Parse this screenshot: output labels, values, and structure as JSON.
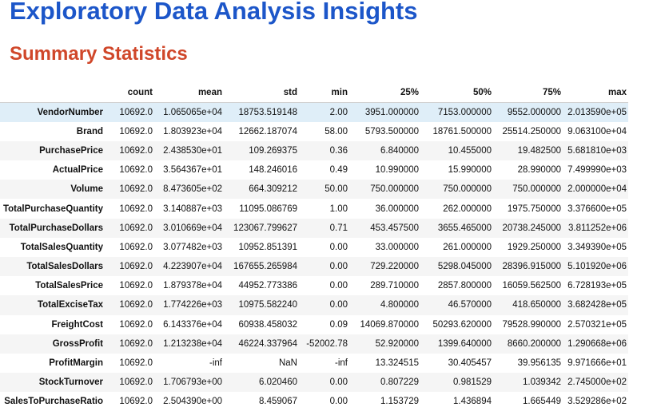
{
  "page": {
    "title": "Exploratory Data Analysis Insights",
    "section_title": "Summary Statistics"
  },
  "table": {
    "columns": [
      "count",
      "mean",
      "std",
      "min",
      "25%",
      "50%",
      "75%",
      "max"
    ],
    "rows": [
      {
        "label": "VendorNumber",
        "values": [
          "10692.0",
          "1.065065e+04",
          "18753.519148",
          "2.00",
          "3951.000000",
          "7153.000000",
          "9552.000000",
          "2.013590e+05"
        ]
      },
      {
        "label": "Brand",
        "values": [
          "10692.0",
          "1.803923e+04",
          "12662.187074",
          "58.00",
          "5793.500000",
          "18761.500000",
          "25514.250000",
          "9.063100e+04"
        ]
      },
      {
        "label": "PurchasePrice",
        "values": [
          "10692.0",
          "2.438530e+01",
          "109.269375",
          "0.36",
          "6.840000",
          "10.455000",
          "19.482500",
          "5.681810e+03"
        ]
      },
      {
        "label": "ActualPrice",
        "values": [
          "10692.0",
          "3.564367e+01",
          "148.246016",
          "0.49",
          "10.990000",
          "15.990000",
          "28.990000",
          "7.499990e+03"
        ]
      },
      {
        "label": "Volume",
        "values": [
          "10692.0",
          "8.473605e+02",
          "664.309212",
          "50.00",
          "750.000000",
          "750.000000",
          "750.000000",
          "2.000000e+04"
        ]
      },
      {
        "label": "TotalPurchaseQuantity",
        "values": [
          "10692.0",
          "3.140887e+03",
          "11095.086769",
          "1.00",
          "36.000000",
          "262.000000",
          "1975.750000",
          "3.376600e+05"
        ]
      },
      {
        "label": "TotalPurchaseDollars",
        "values": [
          "10692.0",
          "3.010669e+04",
          "123067.799627",
          "0.71",
          "453.457500",
          "3655.465000",
          "20738.245000",
          "3.811252e+06"
        ]
      },
      {
        "label": "TotalSalesQuantity",
        "values": [
          "10692.0",
          "3.077482e+03",
          "10952.851391",
          "0.00",
          "33.000000",
          "261.000000",
          "1929.250000",
          "3.349390e+05"
        ]
      },
      {
        "label": "TotalSalesDollars",
        "values": [
          "10692.0",
          "4.223907e+04",
          "167655.265984",
          "0.00",
          "729.220000",
          "5298.045000",
          "28396.915000",
          "5.101920e+06"
        ]
      },
      {
        "label": "TotalSalesPrice",
        "values": [
          "10692.0",
          "1.879378e+04",
          "44952.773386",
          "0.00",
          "289.710000",
          "2857.800000",
          "16059.562500",
          "6.728193e+05"
        ]
      },
      {
        "label": "TotalExciseTax",
        "values": [
          "10692.0",
          "1.774226e+03",
          "10975.582240",
          "0.00",
          "4.800000",
          "46.570000",
          "418.650000",
          "3.682428e+05"
        ]
      },
      {
        "label": "FreightCost",
        "values": [
          "10692.0",
          "6.143376e+04",
          "60938.458032",
          "0.09",
          "14069.870000",
          "50293.620000",
          "79528.990000",
          "2.570321e+05"
        ]
      },
      {
        "label": "GrossProfit",
        "values": [
          "10692.0",
          "1.213238e+04",
          "46224.337964",
          "-52002.78",
          "52.920000",
          "1399.640000",
          "8660.200000",
          "1.290668e+06"
        ]
      },
      {
        "label": "ProfitMargin",
        "values": [
          "10692.0",
          "-inf",
          "NaN",
          "-inf",
          "13.324515",
          "30.405457",
          "39.956135",
          "9.971666e+01"
        ]
      },
      {
        "label": "StockTurnover",
        "values": [
          "10692.0",
          "1.706793e+00",
          "6.020460",
          "0.00",
          "0.807229",
          "0.981529",
          "1.039342",
          "2.745000e+02"
        ]
      },
      {
        "label": "SalesToPurchaseRatio",
        "values": [
          "10692.0",
          "2.504390e+00",
          "8.459067",
          "0.00",
          "1.153729",
          "1.436894",
          "1.665449",
          "3.529286e+02"
        ]
      }
    ]
  }
}
